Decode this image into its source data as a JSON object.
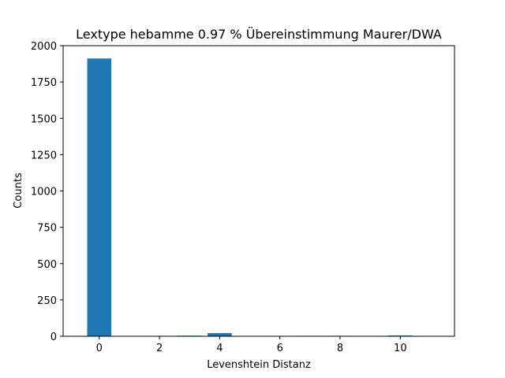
{
  "chart_data": {
    "type": "bar",
    "title": "Lextype hebamme  0.97 % Übereinstimmung Maurer/DWA",
    "xlabel": "Levenshtein Distanz",
    "ylabel": "Counts",
    "x": [
      0,
      1,
      2,
      3,
      4,
      5,
      6,
      7,
      8,
      9,
      10,
      11
    ],
    "values": [
      1912,
      0,
      0,
      4,
      22,
      0,
      0,
      3,
      3,
      0,
      5,
      0
    ],
    "xlim": [
      -1.2,
      11.8
    ],
    "ylim": [
      0,
      2000
    ],
    "xticks": [
      0,
      2,
      4,
      6,
      8,
      10
    ],
    "yticks": [
      0,
      250,
      500,
      750,
      1000,
      1250,
      1500,
      1750,
      2000
    ],
    "bar_color": "#1f77b4",
    "grid": false,
    "legend": "none"
  }
}
